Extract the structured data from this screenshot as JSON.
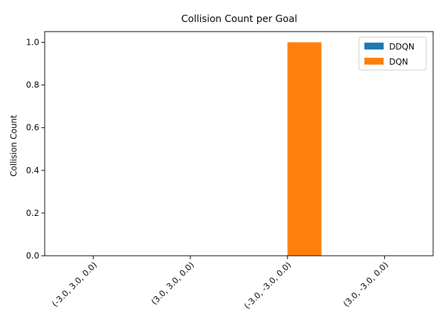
{
  "chart_data": {
    "type": "bar",
    "title": "Collision Count per Goal",
    "xlabel": "",
    "ylabel": "Collision Count",
    "categories": [
      "(-3.0, 3.0, 0.0)",
      "(3.0, 3.0, 0.0)",
      "(-3.0, -3.0, 0.0)",
      "(3.0, -3.0, 0.0)"
    ],
    "series": [
      {
        "name": "DDQN",
        "values": [
          0,
          0,
          0,
          0
        ],
        "color": "#1f77b4"
      },
      {
        "name": "DQN",
        "values": [
          0,
          0,
          1,
          0
        ],
        "color": "#ff7f0e"
      }
    ],
    "ylim": [
      0,
      1.05
    ],
    "yticks": [
      "0.0",
      "0.2",
      "0.4",
      "0.6",
      "0.8",
      "1.0"
    ],
    "x_tick_rotation_deg": 45,
    "legend_position": "top-right",
    "grid": false
  }
}
